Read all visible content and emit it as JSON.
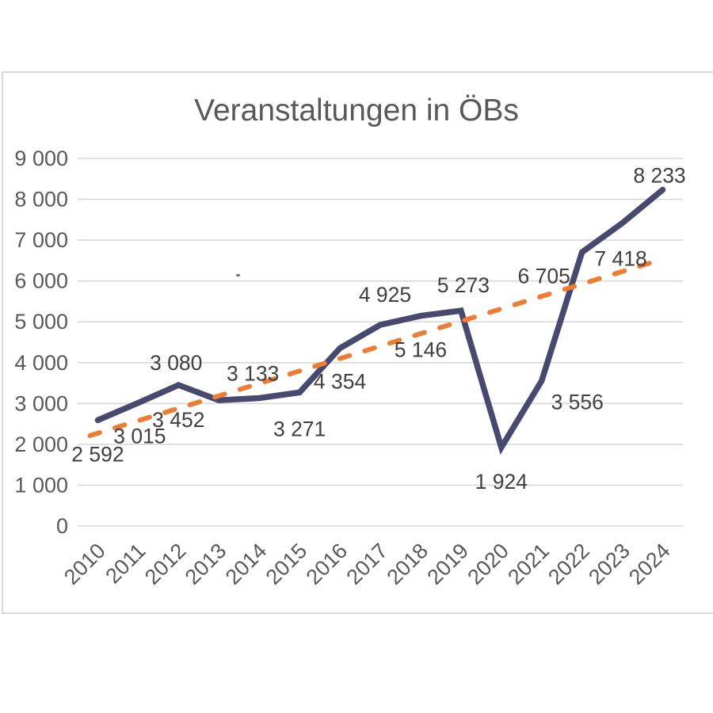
{
  "window": {
    "background": "#ffffff"
  },
  "chart_data": {
    "type": "line",
    "title": "Veranstaltungen in ÖBs",
    "categories": [
      "2010",
      "2011",
      "2012",
      "2013",
      "2014",
      "2015",
      "2016",
      "2017",
      "2018",
      "2019",
      "2020",
      "2021",
      "2022",
      "2023",
      "2024"
    ],
    "series": [
      {
        "name": "Veranstaltungen in ÖBs",
        "color": "#48496f",
        "values": [
          2592,
          3015,
          3452,
          3080,
          3133,
          3271,
          4354,
          4925,
          5146,
          5273,
          1924,
          3556,
          6705,
          7418,
          8233
        ],
        "data_labels": [
          "2 592",
          "3 015",
          "3 452",
          "3 080",
          "3 133",
          "3 271",
          "4 354",
          "4 925",
          "5 146",
          "5 273",
          "1 924",
          "3 556",
          "6 705",
          "7 418",
          "8 233"
        ],
        "label_placements": [
          "below",
          "below",
          "below",
          "above-left",
          "above",
          "below",
          "below",
          "above",
          "below",
          "above",
          "below",
          "right",
          "left-below",
          "below",
          "above"
        ]
      }
    ],
    "trendline": {
      "type": "linear",
      "style": "dashed",
      "color": "#ec7d33",
      "of_series": 0
    },
    "ylim": [
      0,
      9000
    ],
    "ytick_step": 1000,
    "ytick_labels": [
      "0",
      "1 000",
      "2 000",
      "3 000",
      "4 000",
      "5 000",
      "6 000",
      "7 000",
      "8 000",
      "9 000"
    ],
    "xlabel": "",
    "ylabel": "",
    "grid": "horizontal",
    "legend": "none",
    "x_tick_rotation_deg": 45
  },
  "style": {
    "grid_color": "#d9d9d9",
    "frame_color": "#d9d9d9",
    "title_color": "#595959",
    "axis_text_color": "#595959",
    "data_label_color": "#404040"
  }
}
